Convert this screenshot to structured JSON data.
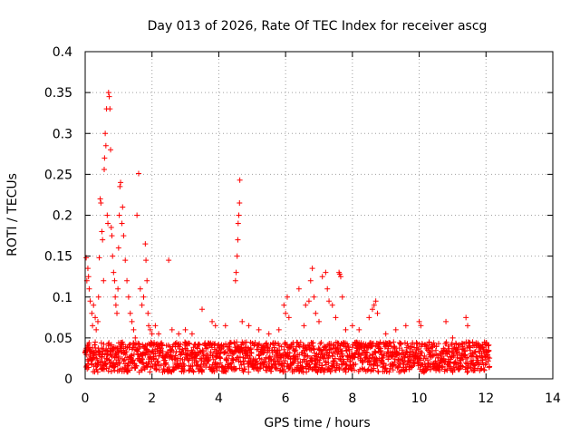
{
  "chart_data": {
    "type": "scatter",
    "title": "Day 013 of 2026, Rate Of TEC Index for receiver ascg",
    "xlabel": "GPS time / hours",
    "ylabel": "ROTI / TECUs",
    "xlim": [
      0,
      14
    ],
    "ylim": [
      0,
      0.4
    ],
    "xticks": [
      0,
      2,
      4,
      6,
      8,
      10,
      12,
      14
    ],
    "yticks": [
      0,
      0.05,
      0.1,
      0.15,
      0.2,
      0.25,
      0.3,
      0.35,
      0.4
    ],
    "xtick_labels": [
      "0",
      "2",
      "4",
      "6",
      "8",
      "10",
      "12",
      "14"
    ],
    "ytick_labels": [
      "0",
      "0.05",
      "0.1",
      "0.15",
      "0.2",
      "0.25",
      "0.3",
      "0.35",
      "0.4"
    ],
    "grid": true,
    "marker": "+",
    "marker_color": "#ff0000",
    "series": [
      {
        "name": "ROTI",
        "baseline_band": {
          "x_range": [
            0,
            12.1
          ],
          "y_range": [
            0.008,
            0.045
          ],
          "step": 0.02
        },
        "points": [
          [
            0.03,
            0.148
          ],
          [
            0.05,
            0.12
          ],
          [
            0.08,
            0.135
          ],
          [
            0.1,
            0.125
          ],
          [
            0.12,
            0.11
          ],
          [
            0.15,
            0.095
          ],
          [
            0.2,
            0.08
          ],
          [
            0.22,
            0.065
          ],
          [
            0.25,
            0.09
          ],
          [
            0.3,
            0.075
          ],
          [
            0.33,
            0.06
          ],
          [
            0.38,
            0.07
          ],
          [
            0.4,
            0.1
          ],
          [
            0.42,
            0.148
          ],
          [
            0.45,
            0.22
          ],
          [
            0.47,
            0.215
          ],
          [
            0.5,
            0.18
          ],
          [
            0.52,
            0.17
          ],
          [
            0.55,
            0.12
          ],
          [
            0.57,
            0.256
          ],
          [
            0.58,
            0.27
          ],
          [
            0.6,
            0.3
          ],
          [
            0.62,
            0.285
          ],
          [
            0.64,
            0.33
          ],
          [
            0.66,
            0.2
          ],
          [
            0.68,
            0.19
          ],
          [
            0.7,
            0.35
          ],
          [
            0.72,
            0.345
          ],
          [
            0.74,
            0.33
          ],
          [
            0.76,
            0.28
          ],
          [
            0.78,
            0.185
          ],
          [
            0.8,
            0.175
          ],
          [
            0.82,
            0.15
          ],
          [
            0.85,
            0.13
          ],
          [
            0.88,
            0.12
          ],
          [
            0.9,
            0.1
          ],
          [
            0.92,
            0.09
          ],
          [
            0.95,
            0.08
          ],
          [
            0.98,
            0.11
          ],
          [
            1.0,
            0.16
          ],
          [
            1.02,
            0.2
          ],
          [
            1.04,
            0.235
          ],
          [
            1.06,
            0.24
          ],
          [
            1.1,
            0.19
          ],
          [
            1.12,
            0.21
          ],
          [
            1.15,
            0.175
          ],
          [
            1.2,
            0.145
          ],
          [
            1.25,
            0.12
          ],
          [
            1.3,
            0.1
          ],
          [
            1.35,
            0.08
          ],
          [
            1.4,
            0.07
          ],
          [
            1.45,
            0.06
          ],
          [
            1.5,
            0.05
          ],
          [
            1.55,
            0.2
          ],
          [
            1.6,
            0.251
          ],
          [
            1.65,
            0.11
          ],
          [
            1.7,
            0.09
          ],
          [
            1.75,
            0.1
          ],
          [
            1.8,
            0.165
          ],
          [
            1.82,
            0.145
          ],
          [
            1.85,
            0.12
          ],
          [
            1.88,
            0.08
          ],
          [
            1.9,
            0.065
          ],
          [
            1.95,
            0.06
          ],
          [
            2.0,
            0.055
          ],
          [
            2.1,
            0.065
          ],
          [
            2.2,
            0.055
          ],
          [
            2.5,
            0.145
          ],
          [
            2.6,
            0.06
          ],
          [
            2.8,
            0.055
          ],
          [
            3.0,
            0.06
          ],
          [
            3.2,
            0.055
          ],
          [
            3.5,
            0.085
          ],
          [
            3.8,
            0.07
          ],
          [
            3.9,
            0.065
          ],
          [
            4.2,
            0.065
          ],
          [
            4.5,
            0.12
          ],
          [
            4.52,
            0.13
          ],
          [
            4.55,
            0.15
          ],
          [
            4.57,
            0.17
          ],
          [
            4.58,
            0.19
          ],
          [
            4.6,
            0.2
          ],
          [
            4.62,
            0.215
          ],
          [
            4.63,
            0.243
          ],
          [
            4.7,
            0.07
          ],
          [
            4.9,
            0.065
          ],
          [
            5.2,
            0.06
          ],
          [
            5.5,
            0.055
          ],
          [
            5.8,
            0.06
          ],
          [
            5.95,
            0.09
          ],
          [
            6.0,
            0.08
          ],
          [
            6.05,
            0.1
          ],
          [
            6.1,
            0.075
          ],
          [
            6.4,
            0.11
          ],
          [
            6.55,
            0.065
          ],
          [
            6.6,
            0.09
          ],
          [
            6.7,
            0.095
          ],
          [
            6.75,
            0.12
          ],
          [
            6.8,
            0.135
          ],
          [
            6.85,
            0.1
          ],
          [
            6.9,
            0.08
          ],
          [
            7.0,
            0.07
          ],
          [
            7.1,
            0.125
          ],
          [
            7.2,
            0.13
          ],
          [
            7.25,
            0.11
          ],
          [
            7.3,
            0.095
          ],
          [
            7.4,
            0.09
          ],
          [
            7.5,
            0.075
          ],
          [
            7.6,
            0.13
          ],
          [
            7.62,
            0.128
          ],
          [
            7.65,
            0.125
          ],
          [
            7.7,
            0.1
          ],
          [
            7.8,
            0.06
          ],
          [
            8.0,
            0.065
          ],
          [
            8.2,
            0.06
          ],
          [
            8.5,
            0.075
          ],
          [
            8.6,
            0.085
          ],
          [
            8.65,
            0.09
          ],
          [
            8.7,
            0.095
          ],
          [
            8.75,
            0.08
          ],
          [
            9.0,
            0.055
          ],
          [
            9.3,
            0.06
          ],
          [
            9.6,
            0.065
          ],
          [
            10.0,
            0.07
          ],
          [
            10.05,
            0.065
          ],
          [
            10.3,
            0.045
          ],
          [
            10.8,
            0.07
          ],
          [
            11.0,
            0.05
          ],
          [
            11.4,
            0.075
          ],
          [
            11.45,
            0.065
          ],
          [
            11.6,
            0.045
          ],
          [
            12.0,
            0.035
          ]
        ]
      }
    ]
  }
}
